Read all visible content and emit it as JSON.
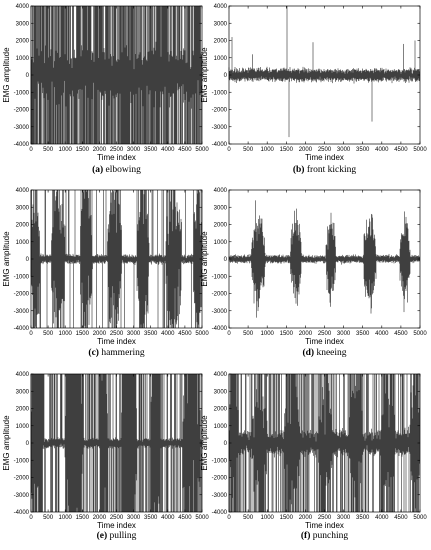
{
  "chart_data": [
    {
      "type": "line",
      "caption": {
        "letter": "(a)",
        "text": " elbowing"
      },
      "xlabel": "Time index",
      "ylabel": "EMG amplitude",
      "xlim": [
        0,
        5000
      ],
      "ylim": [
        -4000,
        4000
      ],
      "xticks": [
        0,
        500,
        1000,
        1500,
        2000,
        2500,
        3000,
        3500,
        4000,
        4500,
        5000
      ],
      "yticks": [
        -4000,
        -3000,
        -2000,
        -1000,
        0,
        1000,
        2000,
        3000,
        4000
      ],
      "series_color": "#000000",
      "signal": {
        "baseline": 900,
        "burst_peak": 1700,
        "bursts": [],
        "spikes": [],
        "clip": 0.22
      }
    },
    {
      "type": "line",
      "caption": {
        "letter": "(b)",
        "text": " front kicking"
      },
      "xlabel": "Time index",
      "ylabel": "EMG amplitude",
      "xlim": [
        0,
        5000
      ],
      "ylim": [
        -4000,
        4000
      ],
      "xticks": [
        0,
        500,
        1000,
        1500,
        2000,
        2500,
        3000,
        3500,
        4000,
        4500,
        5000
      ],
      "yticks": [
        -4000,
        -3000,
        -2000,
        -1000,
        0,
        1000,
        2000,
        3000,
        4000
      ],
      "series_color": "#000000",
      "signal": {
        "baseline": 230,
        "burst_peak": 350,
        "bursts": [],
        "spikes": [
          [
            1530,
            4000
          ],
          [
            1580,
            -3600
          ],
          [
            80,
            2200
          ],
          [
            3750,
            -2700
          ],
          [
            2200,
            1900
          ],
          [
            4580,
            1800
          ],
          [
            4880,
            2000
          ],
          [
            620,
            1200
          ]
        ],
        "clip": 0
      }
    },
    {
      "type": "line",
      "caption": {
        "letter": "(c)",
        "text": " hammering"
      },
      "xlabel": "Time index",
      "ylabel": "EMG amplitude",
      "xlim": [
        0,
        5000
      ],
      "ylim": [
        -4000,
        4000
      ],
      "xticks": [
        0,
        500,
        1000,
        1500,
        2000,
        2500,
        3000,
        3500,
        4000,
        4500,
        5000
      ],
      "yticks": [
        -4000,
        -3000,
        -2000,
        -1000,
        0,
        1000,
        2000,
        3000,
        4000
      ],
      "series_color": "#000000",
      "signal": {
        "baseline": 160,
        "burst_peak": 2900,
        "bursts": [
          [
            0,
            260
          ],
          [
            600,
            1000
          ],
          [
            1450,
            1800
          ],
          [
            2250,
            2650
          ],
          [
            3100,
            3450
          ],
          [
            3950,
            4400
          ],
          [
            4750,
            5000
          ]
        ],
        "spikes": [],
        "clip": 0.05
      }
    },
    {
      "type": "line",
      "caption": {
        "letter": "(d)",
        "text": " kneeing"
      },
      "xlabel": "Time index",
      "ylabel": "EMG amplitude",
      "xlim": [
        0,
        5000
      ],
      "ylim": [
        -4000,
        4000
      ],
      "xticks": [
        0,
        500,
        1000,
        1500,
        2000,
        2500,
        3000,
        3500,
        4000,
        4500,
        5000
      ],
      "yticks": [
        -4000,
        -3000,
        -2000,
        -1000,
        0,
        1000,
        2000,
        3000,
        4000
      ],
      "series_color": "#000000",
      "signal": {
        "baseline": 140,
        "burst_peak": 1700,
        "bursts": [
          [
            600,
            950
          ],
          [
            1620,
            1900
          ],
          [
            2550,
            2800
          ],
          [
            3530,
            3850
          ],
          [
            4480,
            4750
          ]
        ],
        "spikes": [
          [
            700,
            3400
          ],
          [
            720,
            -3400
          ]
        ],
        "clip": 0
      }
    },
    {
      "type": "line",
      "caption": {
        "letter": "(e)",
        "text": " pulling"
      },
      "xlabel": "Time index",
      "ylabel": "EMG amplitude",
      "xlim": [
        0,
        5000
      ],
      "ylim": [
        -4000,
        4000
      ],
      "xticks": [
        0,
        500,
        1000,
        1500,
        2000,
        2500,
        3000,
        3500,
        4000,
        4500,
        5000
      ],
      "yticks": [
        -4000,
        -3000,
        -2000,
        -1000,
        0,
        1000,
        2000,
        3000,
        4000
      ],
      "series_color": "#000000",
      "signal": {
        "baseline": 180,
        "burst_peak": 3400,
        "bursts": [
          [
            0,
            350
          ],
          [
            1000,
            1550
          ],
          [
            2050,
            2250
          ],
          [
            2650,
            3100
          ],
          [
            3500,
            3800
          ],
          [
            4450,
            4950
          ]
        ],
        "spikes": [],
        "clip": 0.25
      }
    },
    {
      "type": "line",
      "caption": {
        "letter": "(f)",
        "text": " punching"
      },
      "xlabel": "Time index",
      "ylabel": "EMG amplitude",
      "xlim": [
        0,
        5000
      ],
      "ylim": [
        -4000,
        4000
      ],
      "xticks": [
        0,
        500,
        1000,
        1500,
        2000,
        2500,
        3000,
        3500,
        4000,
        4500,
        5000
      ],
      "yticks": [
        -4000,
        -3000,
        -2000,
        -1000,
        0,
        1000,
        2000,
        3000,
        4000
      ],
      "series_color": "#000000",
      "signal": {
        "baseline": 450,
        "burst_peak": 2400,
        "bursts": [
          [
            0,
            250
          ],
          [
            600,
            1000
          ],
          [
            1450,
            1850
          ],
          [
            2350,
            2700
          ],
          [
            3150,
            3500
          ],
          [
            4000,
            4350
          ],
          [
            4750,
            5000
          ]
        ],
        "spikes": [],
        "clip": 0.15
      }
    }
  ]
}
